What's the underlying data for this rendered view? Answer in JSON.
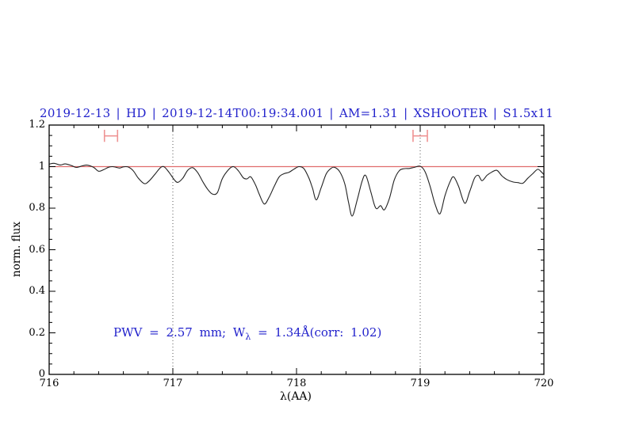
{
  "chart_data": {
    "type": "line",
    "title": "2019-12-13 | HD | 2019-12-14T00:19:34.001 | AM=1.31 | XSHOOTER | S1.5x11",
    "xlabel": "λ(AA)",
    "ylabel": "norm. flux",
    "xlim": [
      716,
      720
    ],
    "ylim": [
      0,
      1.2
    ],
    "x_ticks": [
      716,
      717,
      718,
      719,
      720
    ],
    "x_tick_labels": [
      "716",
      "717",
      "718",
      "719",
      "720"
    ],
    "x_minor_step": 0.2,
    "y_ticks": [
      0,
      0.2,
      0.4,
      0.6,
      0.8,
      1,
      1.2
    ],
    "y_tick_labels": [
      "0",
      "0.2",
      "0.4",
      "0.6",
      "0.8",
      "1",
      "1.2"
    ],
    "y_minor_step": 0.05,
    "grid": "off",
    "legend": "none",
    "vlines": [
      717,
      719
    ],
    "hline": {
      "y": 1.0
    },
    "range_markers": [
      {
        "x_center": 716.5,
        "half_width": 0.053,
        "y": 1.148,
        "cap_half_height": 0.029
      },
      {
        "x_center": 719.0,
        "half_width": 0.058,
        "y": 1.148,
        "cap_half_height": 0.029
      }
    ],
    "annotation": {
      "pre": "PWV = 2.57 mm; W",
      "sub": "λ",
      "post": " = 1.34Å(corr: 1.02)"
    },
    "colors": {
      "title_text": "#2222cc",
      "annotation_text": "#2222cc",
      "continuum_line": "#e06c6c",
      "range_marker": "#ef9494",
      "spectrum": "#222222",
      "frame": "#000000",
      "vline": "#555555"
    },
    "series": [
      {
        "name": "spectrum",
        "points": [
          [
            716.0,
            1.012
          ],
          [
            716.04,
            1.016
          ],
          [
            716.09,
            1.008
          ],
          [
            716.13,
            1.013
          ],
          [
            716.18,
            1.005
          ],
          [
            716.22,
            0.996
          ],
          [
            716.27,
            1.004
          ],
          [
            716.31,
            1.007
          ],
          [
            716.36,
            0.996
          ],
          [
            716.4,
            0.978
          ],
          [
            716.44,
            0.985
          ],
          [
            716.48,
            0.997
          ],
          [
            716.51,
            1.0
          ],
          [
            716.54,
            0.997
          ],
          [
            716.57,
            0.993
          ],
          [
            716.6,
            0.999
          ],
          [
            716.64,
            0.998
          ],
          [
            716.68,
            0.98
          ],
          [
            716.72,
            0.945
          ],
          [
            716.77,
            0.918
          ],
          [
            716.81,
            0.932
          ],
          [
            716.86,
            0.967
          ],
          [
            716.9,
            0.995
          ],
          [
            716.93,
            0.999
          ],
          [
            716.97,
            0.972
          ],
          [
            717.01,
            0.938
          ],
          [
            717.04,
            0.924
          ],
          [
            717.08,
            0.944
          ],
          [
            717.12,
            0.982
          ],
          [
            717.16,
            0.995
          ],
          [
            717.2,
            0.972
          ],
          [
            717.24,
            0.93
          ],
          [
            717.28,
            0.892
          ],
          [
            717.32,
            0.868
          ],
          [
            717.36,
            0.875
          ],
          [
            717.4,
            0.942
          ],
          [
            717.45,
            0.985
          ],
          [
            717.49,
            1.0
          ],
          [
            717.53,
            0.98
          ],
          [
            717.57,
            0.946
          ],
          [
            717.6,
            0.941
          ],
          [
            717.63,
            0.951
          ],
          [
            717.67,
            0.91
          ],
          [
            717.7,
            0.865
          ],
          [
            717.74,
            0.82
          ],
          [
            717.78,
            0.855
          ],
          [
            717.82,
            0.905
          ],
          [
            717.86,
            0.951
          ],
          [
            717.9,
            0.966
          ],
          [
            717.94,
            0.973
          ],
          [
            717.98,
            0.988
          ],
          [
            718.02,
            1.0
          ],
          [
            718.06,
            0.99
          ],
          [
            718.1,
            0.945
          ],
          [
            718.13,
            0.895
          ],
          [
            718.16,
            0.84
          ],
          [
            718.2,
            0.9
          ],
          [
            718.24,
            0.965
          ],
          [
            718.28,
            0.992
          ],
          [
            718.31,
            0.996
          ],
          [
            718.35,
            0.975
          ],
          [
            718.39,
            0.918
          ],
          [
            718.42,
            0.83
          ],
          [
            718.45,
            0.762
          ],
          [
            718.49,
            0.838
          ],
          [
            718.53,
            0.93
          ],
          [
            718.56,
            0.957
          ],
          [
            718.6,
            0.88
          ],
          [
            718.63,
            0.815
          ],
          [
            718.65,
            0.797
          ],
          [
            718.68,
            0.812
          ],
          [
            718.71,
            0.792
          ],
          [
            718.75,
            0.845
          ],
          [
            718.79,
            0.935
          ],
          [
            718.83,
            0.98
          ],
          [
            718.87,
            0.99
          ],
          [
            718.91,
            0.991
          ],
          [
            718.95,
            0.996
          ],
          [
            719.0,
            1.002
          ],
          [
            719.04,
            0.975
          ],
          [
            719.08,
            0.905
          ],
          [
            719.12,
            0.82
          ],
          [
            719.16,
            0.773
          ],
          [
            719.2,
            0.86
          ],
          [
            719.24,
            0.925
          ],
          [
            719.27,
            0.951
          ],
          [
            719.31,
            0.905
          ],
          [
            719.36,
            0.824
          ],
          [
            719.4,
            0.88
          ],
          [
            719.44,
            0.945
          ],
          [
            719.47,
            0.958
          ],
          [
            719.5,
            0.932
          ],
          [
            719.54,
            0.958
          ],
          [
            719.58,
            0.974
          ],
          [
            719.62,
            0.982
          ],
          [
            719.66,
            0.956
          ],
          [
            719.7,
            0.938
          ],
          [
            719.75,
            0.926
          ],
          [
            719.79,
            0.923
          ],
          [
            719.83,
            0.92
          ],
          [
            719.87,
            0.944
          ],
          [
            719.91,
            0.966
          ],
          [
            719.95,
            0.987
          ],
          [
            719.98,
            0.974
          ],
          [
            720.0,
            0.962
          ]
        ]
      }
    ]
  }
}
